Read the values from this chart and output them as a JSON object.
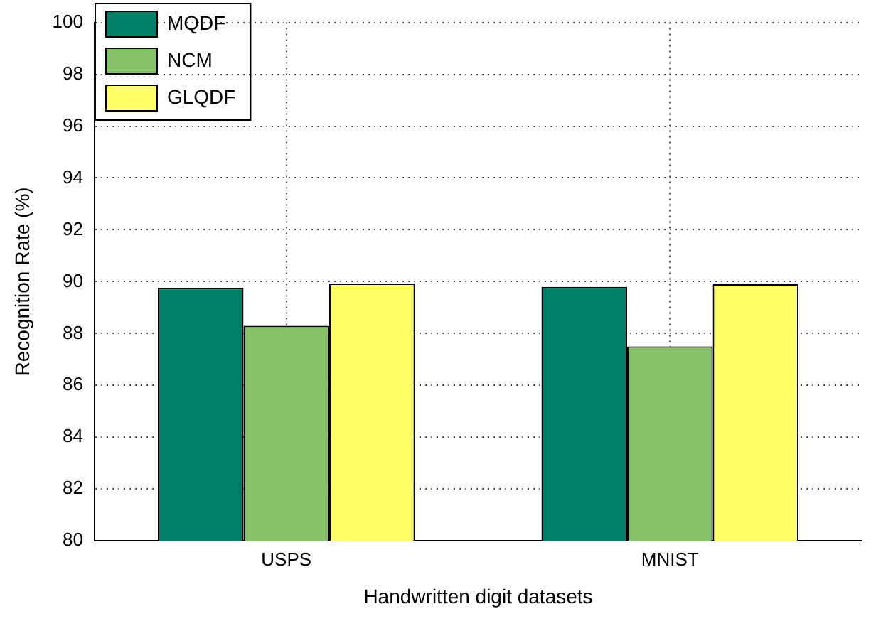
{
  "chart_data": {
    "type": "bar",
    "xlabel": "Handwritten digit datasets",
    "ylabel": "Recognition Rate (%)",
    "categories": [
      "USPS",
      "MNIST"
    ],
    "series": [
      {
        "name": "MQDF",
        "color": "#008066",
        "values": [
          89.76,
          89.8
        ]
      },
      {
        "name": "NCM",
        "color": "#84c168",
        "values": [
          88.3,
          87.5
        ]
      },
      {
        "name": "GLQDF",
        "color": "#ffff66",
        "values": [
          89.93,
          89.9
        ]
      }
    ],
    "ylim": [
      80,
      100
    ],
    "yticks": [
      80,
      82,
      84,
      86,
      88,
      90,
      92,
      94,
      96,
      98,
      100
    ],
    "grid": true,
    "line_style": "dotted",
    "legend": "top left"
  }
}
